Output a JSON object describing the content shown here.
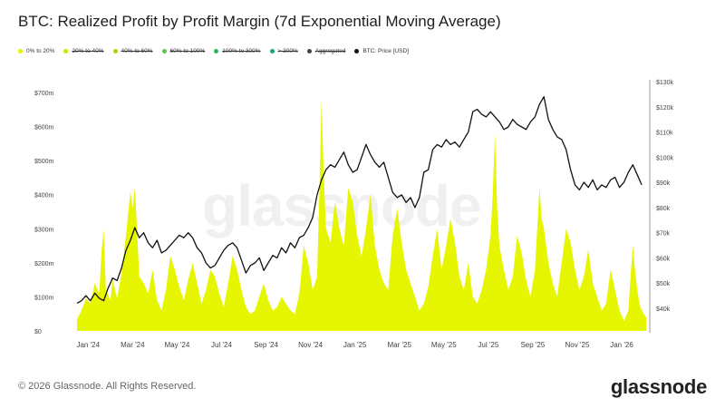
{
  "title": "BTC: Realized Profit by Profit Margin (7d Exponential Moving Average)",
  "legend": [
    {
      "label": "0% to 20%",
      "color": "#e6f500",
      "off": false
    },
    {
      "label": "20% to 40%",
      "color": "#c7e600",
      "off": true
    },
    {
      "label": "40% to 60%",
      "color": "#a3d900",
      "off": true
    },
    {
      "label": "60% to 100%",
      "color": "#5fc24a",
      "off": true
    },
    {
      "label": "100% to 300%",
      "color": "#2fb55a",
      "off": true
    },
    {
      "label": "> 300%",
      "color": "#1aa36b",
      "off": true
    },
    {
      "label": "Aggregated",
      "color": "#444444",
      "off": true
    },
    {
      "label": "BTC: Price [USD]",
      "color": "#111111",
      "off": false
    }
  ],
  "watermark": "glassnode",
  "footer": "© 2026 Glassnode. All Rights Reserved.",
  "brand": "glassnode",
  "chart_data": {
    "type": "area",
    "colors": {
      "profit": "#e6f500",
      "price": "#111111"
    },
    "x_tick_labels": [
      "Jan '24",
      "Mar '24",
      "May '24",
      "Jul '24",
      "Sep '24",
      "Nov '24",
      "Jan '25",
      "Mar '25",
      "May '25",
      "Jul '25",
      "Sep '25",
      "Nov '25",
      "Jan '26"
    ],
    "x_ticks_month_index": [
      0.5,
      2.5,
      4.5,
      6.5,
      8.5,
      10.5,
      12.5,
      14.5,
      16.5,
      18.5,
      20.5,
      22.5,
      24.5
    ],
    "left_axis": {
      "label": "",
      "ticks": [
        "$0",
        "$100m",
        "$200m",
        "$300m",
        "$400m",
        "$500m",
        "$600m",
        "$700m"
      ],
      "range": [
        0,
        700
      ]
    },
    "right_axis": {
      "label": "",
      "ticks": [
        "$40k",
        "$50k",
        "$60k",
        "$70k",
        "$80k",
        "$90k",
        "$100k",
        "$110k",
        "$120k",
        "$130k"
      ],
      "range": [
        30,
        130
      ]
    },
    "x_range_months": [
      0,
      25.6
    ],
    "series": [
      {
        "name": "0% to 20%",
        "axis": "left",
        "unit": "$m",
        "points": [
          [
            0,
            35
          ],
          [
            0.2,
            60
          ],
          [
            0.4,
            95
          ],
          [
            0.6,
            80
          ],
          [
            0.8,
            140
          ],
          [
            1,
            110
          ],
          [
            1.1,
            230
          ],
          [
            1.2,
            300
          ],
          [
            1.3,
            120
          ],
          [
            1.5,
            90
          ],
          [
            1.6,
            150
          ],
          [
            1.8,
            95
          ],
          [
            2,
            170
          ],
          [
            2.2,
            280
          ],
          [
            2.4,
            410
          ],
          [
            2.5,
            360
          ],
          [
            2.6,
            420
          ],
          [
            2.7,
            300
          ],
          [
            2.8,
            160
          ],
          [
            3,
            140
          ],
          [
            3.2,
            110
          ],
          [
            3.4,
            180
          ],
          [
            3.6,
            90
          ],
          [
            3.8,
            60
          ],
          [
            4,
            120
          ],
          [
            4.2,
            220
          ],
          [
            4.4,
            180
          ],
          [
            4.6,
            130
          ],
          [
            4.8,
            90
          ],
          [
            5,
            150
          ],
          [
            5.2,
            200
          ],
          [
            5.4,
            140
          ],
          [
            5.6,
            80
          ],
          [
            5.8,
            120
          ],
          [
            6,
            180
          ],
          [
            6.2,
            160
          ],
          [
            6.4,
            110
          ],
          [
            6.6,
            70
          ],
          [
            6.8,
            140
          ],
          [
            7,
            220
          ],
          [
            7.2,
            180
          ],
          [
            7.4,
            120
          ],
          [
            7.6,
            70
          ],
          [
            7.8,
            50
          ],
          [
            8,
            60
          ],
          [
            8.2,
            100
          ],
          [
            8.4,
            140
          ],
          [
            8.6,
            90
          ],
          [
            8.8,
            60
          ],
          [
            9,
            70
          ],
          [
            9.2,
            100
          ],
          [
            9.4,
            80
          ],
          [
            9.6,
            60
          ],
          [
            9.8,
            50
          ],
          [
            10,
            110
          ],
          [
            10.2,
            250
          ],
          [
            10.4,
            200
          ],
          [
            10.6,
            120
          ],
          [
            10.8,
            160
          ],
          [
            10.9,
            400
          ],
          [
            11,
            680
          ],
          [
            11.1,
            450
          ],
          [
            11.2,
            300
          ],
          [
            11.4,
            260
          ],
          [
            11.6,
            380
          ],
          [
            11.8,
            300
          ],
          [
            12,
            250
          ],
          [
            12.2,
            420
          ],
          [
            12.4,
            380
          ],
          [
            12.6,
            280
          ],
          [
            12.8,
            220
          ],
          [
            13,
            300
          ],
          [
            13.2,
            400
          ],
          [
            13.4,
            250
          ],
          [
            13.6,
            180
          ],
          [
            13.8,
            140
          ],
          [
            14,
            120
          ],
          [
            14.2,
            280
          ],
          [
            14.4,
            360
          ],
          [
            14.6,
            260
          ],
          [
            14.8,
            180
          ],
          [
            15,
            140
          ],
          [
            15.2,
            100
          ],
          [
            15.4,
            60
          ],
          [
            15.6,
            80
          ],
          [
            15.8,
            130
          ],
          [
            16,
            220
          ],
          [
            16.2,
            300
          ],
          [
            16.4,
            180
          ],
          [
            16.6,
            250
          ],
          [
            16.8,
            330
          ],
          [
            17,
            260
          ],
          [
            17.2,
            160
          ],
          [
            17.4,
            120
          ],
          [
            17.6,
            200
          ],
          [
            17.8,
            100
          ],
          [
            18,
            80
          ],
          [
            18.2,
            120
          ],
          [
            18.4,
            180
          ],
          [
            18.6,
            280
          ],
          [
            18.7,
            400
          ],
          [
            18.8,
            580
          ],
          [
            18.9,
            360
          ],
          [
            19,
            250
          ],
          [
            19.2,
            180
          ],
          [
            19.4,
            120
          ],
          [
            19.6,
            160
          ],
          [
            19.8,
            280
          ],
          [
            20,
            230
          ],
          [
            20.2,
            150
          ],
          [
            20.4,
            100
          ],
          [
            20.6,
            180
          ],
          [
            20.8,
            420
          ],
          [
            20.9,
            330
          ],
          [
            21,
            300
          ],
          [
            21.2,
            200
          ],
          [
            21.4,
            140
          ],
          [
            21.6,
            100
          ],
          [
            21.8,
            200
          ],
          [
            22,
            300
          ],
          [
            22.2,
            260
          ],
          [
            22.4,
            180
          ],
          [
            22.6,
            120
          ],
          [
            22.8,
            160
          ],
          [
            23,
            240
          ],
          [
            23.2,
            140
          ],
          [
            23.4,
            100
          ],
          [
            23.6,
            60
          ],
          [
            23.8,
            80
          ],
          [
            24,
            180
          ],
          [
            24.2,
            120
          ],
          [
            24.4,
            60
          ],
          [
            24.6,
            30
          ],
          [
            24.8,
            60
          ],
          [
            24.9,
            160
          ],
          [
            25,
            250
          ],
          [
            25.1,
            180
          ],
          [
            25.2,
            120
          ],
          [
            25.3,
            80
          ],
          [
            25.4,
            60
          ],
          [
            25.6,
            40
          ]
        ]
      },
      {
        "name": "BTC: Price [USD]",
        "axis": "right",
        "unit": "$k",
        "points": [
          [
            0,
            42
          ],
          [
            0.2,
            43
          ],
          [
            0.4,
            45
          ],
          [
            0.6,
            43
          ],
          [
            0.8,
            46
          ],
          [
            1,
            44
          ],
          [
            1.2,
            43
          ],
          [
            1.4,
            48
          ],
          [
            1.6,
            52
          ],
          [
            1.8,
            51
          ],
          [
            2,
            56
          ],
          [
            2.2,
            63
          ],
          [
            2.4,
            67
          ],
          [
            2.6,
            72
          ],
          [
            2.8,
            68
          ],
          [
            3,
            70
          ],
          [
            3.2,
            66
          ],
          [
            3.4,
            64
          ],
          [
            3.6,
            67
          ],
          [
            3.8,
            62
          ],
          [
            4,
            63
          ],
          [
            4.2,
            65
          ],
          [
            4.4,
            67
          ],
          [
            4.6,
            69
          ],
          [
            4.8,
            68
          ],
          [
            5,
            70
          ],
          [
            5.2,
            68
          ],
          [
            5.4,
            64
          ],
          [
            5.6,
            62
          ],
          [
            5.8,
            58
          ],
          [
            6,
            56
          ],
          [
            6.2,
            57
          ],
          [
            6.4,
            60
          ],
          [
            6.6,
            63
          ],
          [
            6.8,
            65
          ],
          [
            7,
            66
          ],
          [
            7.2,
            64
          ],
          [
            7.4,
            59
          ],
          [
            7.6,
            54
          ],
          [
            7.8,
            57
          ],
          [
            8,
            58
          ],
          [
            8.2,
            60
          ],
          [
            8.4,
            55
          ],
          [
            8.6,
            58
          ],
          [
            8.8,
            61
          ],
          [
            9,
            60
          ],
          [
            9.2,
            64
          ],
          [
            9.4,
            62
          ],
          [
            9.6,
            66
          ],
          [
            9.8,
            64
          ],
          [
            10,
            68
          ],
          [
            10.2,
            69
          ],
          [
            10.4,
            72
          ],
          [
            10.6,
            76
          ],
          [
            10.8,
            85
          ],
          [
            11,
            91
          ],
          [
            11.2,
            95
          ],
          [
            11.4,
            97
          ],
          [
            11.6,
            96
          ],
          [
            11.8,
            99
          ],
          [
            12,
            102
          ],
          [
            12.2,
            97
          ],
          [
            12.4,
            94
          ],
          [
            12.6,
            95
          ],
          [
            12.8,
            100
          ],
          [
            13,
            105
          ],
          [
            13.2,
            101
          ],
          [
            13.4,
            98
          ],
          [
            13.6,
            96
          ],
          [
            13.8,
            98
          ],
          [
            14,
            92
          ],
          [
            14.2,
            86
          ],
          [
            14.4,
            84
          ],
          [
            14.6,
            85
          ],
          [
            14.8,
            82
          ],
          [
            15,
            84
          ],
          [
            15.2,
            80
          ],
          [
            15.4,
            84
          ],
          [
            15.6,
            94
          ],
          [
            15.8,
            95
          ],
          [
            16,
            103
          ],
          [
            16.2,
            105
          ],
          [
            16.4,
            104
          ],
          [
            16.6,
            107
          ],
          [
            16.8,
            105
          ],
          [
            17,
            106
          ],
          [
            17.2,
            104
          ],
          [
            17.4,
            107
          ],
          [
            17.6,
            110
          ],
          [
            17.8,
            118
          ],
          [
            18,
            119
          ],
          [
            18.2,
            117
          ],
          [
            18.4,
            116
          ],
          [
            18.6,
            118
          ],
          [
            18.8,
            116
          ],
          [
            19,
            114
          ],
          [
            19.2,
            111
          ],
          [
            19.4,
            112
          ],
          [
            19.6,
            115
          ],
          [
            19.8,
            113
          ],
          [
            20,
            112
          ],
          [
            20.2,
            111
          ],
          [
            20.4,
            114
          ],
          [
            20.6,
            116
          ],
          [
            20.8,
            121
          ],
          [
            21,
            124
          ],
          [
            21.2,
            115
          ],
          [
            21.4,
            111
          ],
          [
            21.6,
            108
          ],
          [
            21.8,
            107
          ],
          [
            22,
            103
          ],
          [
            22.2,
            95
          ],
          [
            22.4,
            89
          ],
          [
            22.6,
            87
          ],
          [
            22.8,
            90
          ],
          [
            23,
            88
          ],
          [
            23.2,
            91
          ],
          [
            23.4,
            87
          ],
          [
            23.6,
            89
          ],
          [
            23.8,
            88
          ],
          [
            24,
            91
          ],
          [
            24.2,
            92
          ],
          [
            24.4,
            88
          ],
          [
            24.6,
            90
          ],
          [
            24.8,
            94
          ],
          [
            25,
            97
          ],
          [
            25.2,
            93
          ],
          [
            25.4,
            89
          ]
        ]
      }
    ]
  }
}
